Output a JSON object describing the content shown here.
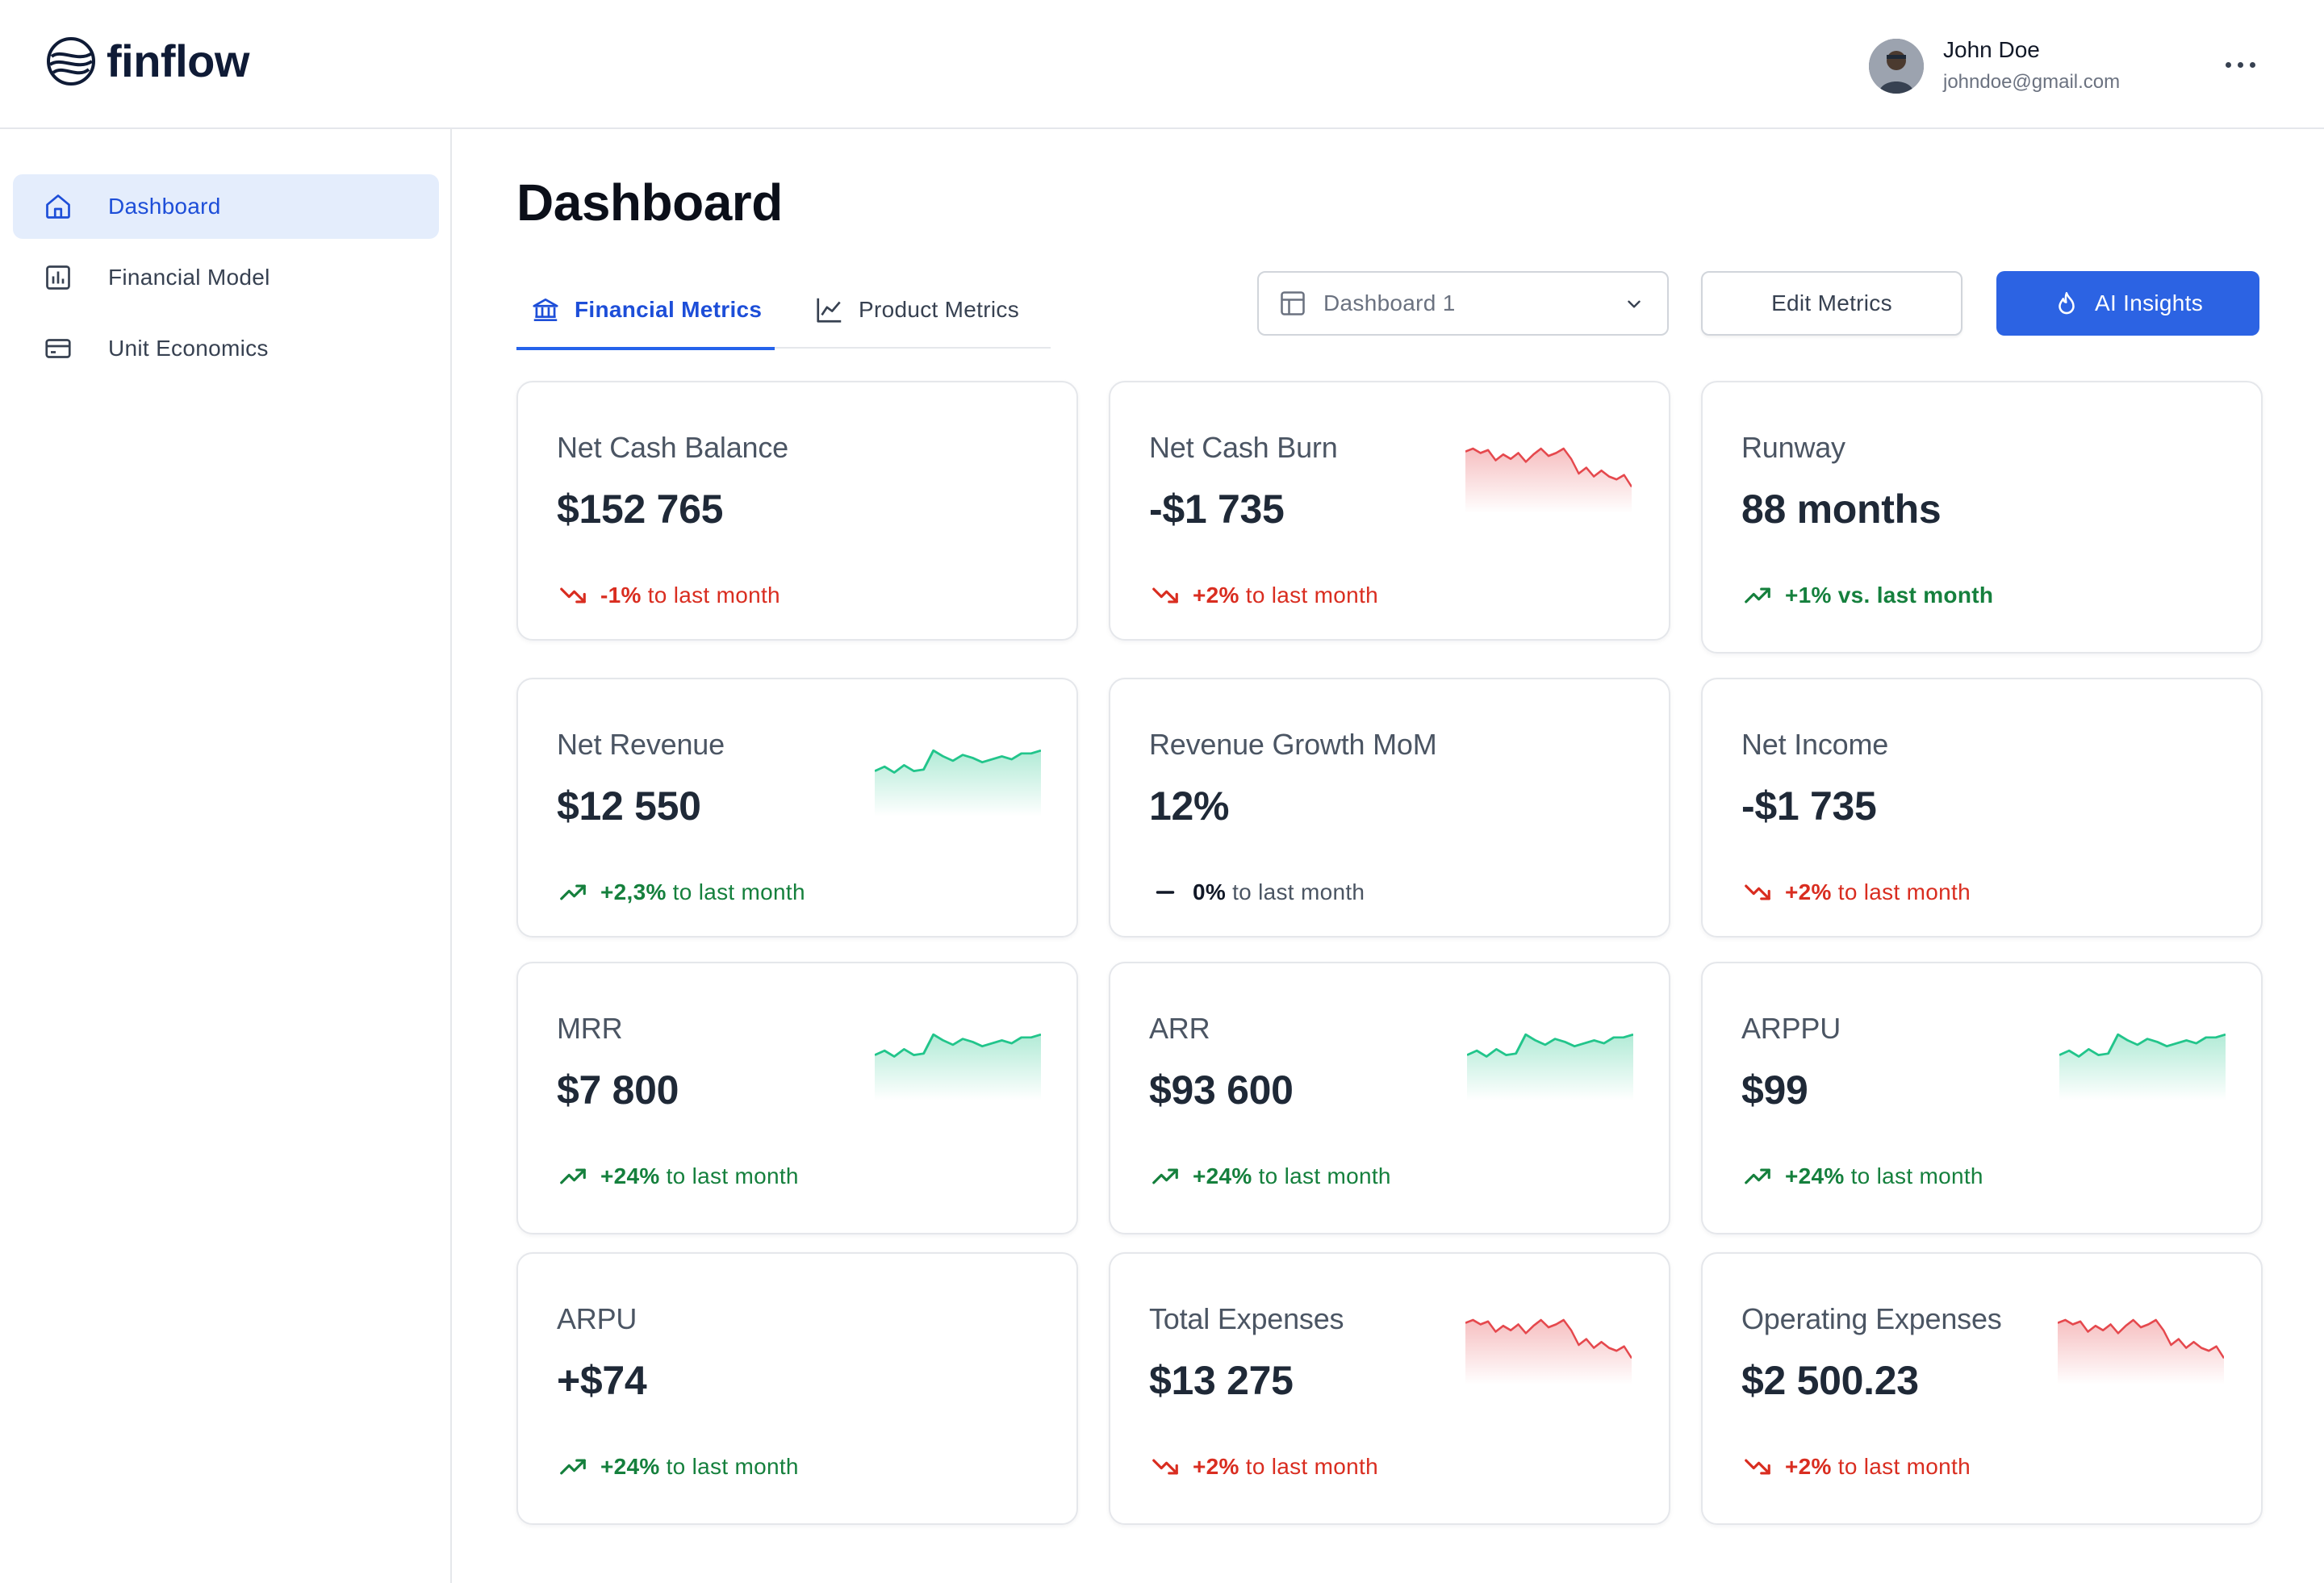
{
  "app": {
    "logo_text": "finflow"
  },
  "user": {
    "name": "John Doe",
    "email": "johndoe@gmail.com"
  },
  "sidebar": {
    "items": [
      {
        "label": "Dashboard",
        "icon": "home-icon",
        "active": true
      },
      {
        "label": "Financial Model",
        "icon": "bar-chart-icon",
        "active": false
      },
      {
        "label": "Unit Economics",
        "icon": "credit-card-icon",
        "active": false
      }
    ]
  },
  "page": {
    "title": "Dashboard"
  },
  "tabs": [
    {
      "label": "Financial Metrics",
      "icon": "bank-icon",
      "active": true
    },
    {
      "label": "Product Metrics",
      "icon": "line-chart-icon",
      "active": false
    }
  ],
  "toolbar": {
    "dashboard_select": "Dashboard 1",
    "edit_label": "Edit Metrics",
    "ai_label": "AI Insights"
  },
  "colors": {
    "accent": "#2c63e3",
    "active_nav_bg": "#e4edfc",
    "positive": "#15803d",
    "negative": "#d92d20",
    "spark_up": "#22c58b",
    "spark_down": "#e5484d"
  },
  "cards": [
    {
      "title": "Net Cash Balance",
      "value": "$152 765",
      "delta": "-1%",
      "delta_text": "to last month",
      "trend": "down",
      "spark": null
    },
    {
      "title": "Net Cash Burn",
      "value": "-$1 735",
      "delta": "+2%",
      "delta_text": "to last month",
      "trend": "down",
      "spark": "down"
    },
    {
      "title": "Runway",
      "value": "88 months",
      "delta": "+1% vs. last month",
      "delta_text": "",
      "trend": "up",
      "spark": null
    },
    {
      "title": "Net Revenue",
      "value": "$12 550",
      "delta": "+2,3%",
      "delta_text": "to last month",
      "trend": "up",
      "spark": "up"
    },
    {
      "title": "Revenue Growth MoM",
      "value": "12%",
      "delta": "0%",
      "delta_text": "to last month",
      "trend": "flat",
      "spark": null
    },
    {
      "title": "Net Income",
      "value": "-$1 735",
      "delta": "+2%",
      "delta_text": "to last month",
      "trend": "down",
      "spark": null
    },
    {
      "title": "MRR",
      "value": "$7 800",
      "delta": "+24%",
      "delta_text": "to last month",
      "trend": "up",
      "spark": "up"
    },
    {
      "title": "ARR",
      "value": "$93 600",
      "delta": "+24%",
      "delta_text": "to last month",
      "trend": "up",
      "spark": "up"
    },
    {
      "title": "ARPPU",
      "value": "$99",
      "delta": "+24%",
      "delta_text": "to last month",
      "trend": "up",
      "spark": "up"
    },
    {
      "title": "ARPU",
      "value": "+$74",
      "delta": "+24%",
      "delta_text": "to last month",
      "trend": "up",
      "spark": null
    },
    {
      "title": "Total Expenses",
      "value": "$13 275",
      "delta": "+2%",
      "delta_text": "to last month",
      "trend": "down",
      "spark": "down"
    },
    {
      "title": "Operating Expenses",
      "value": "$2 500.23",
      "delta": "+2%",
      "delta_text": "to last month",
      "trend": "down",
      "spark": "down"
    }
  ]
}
